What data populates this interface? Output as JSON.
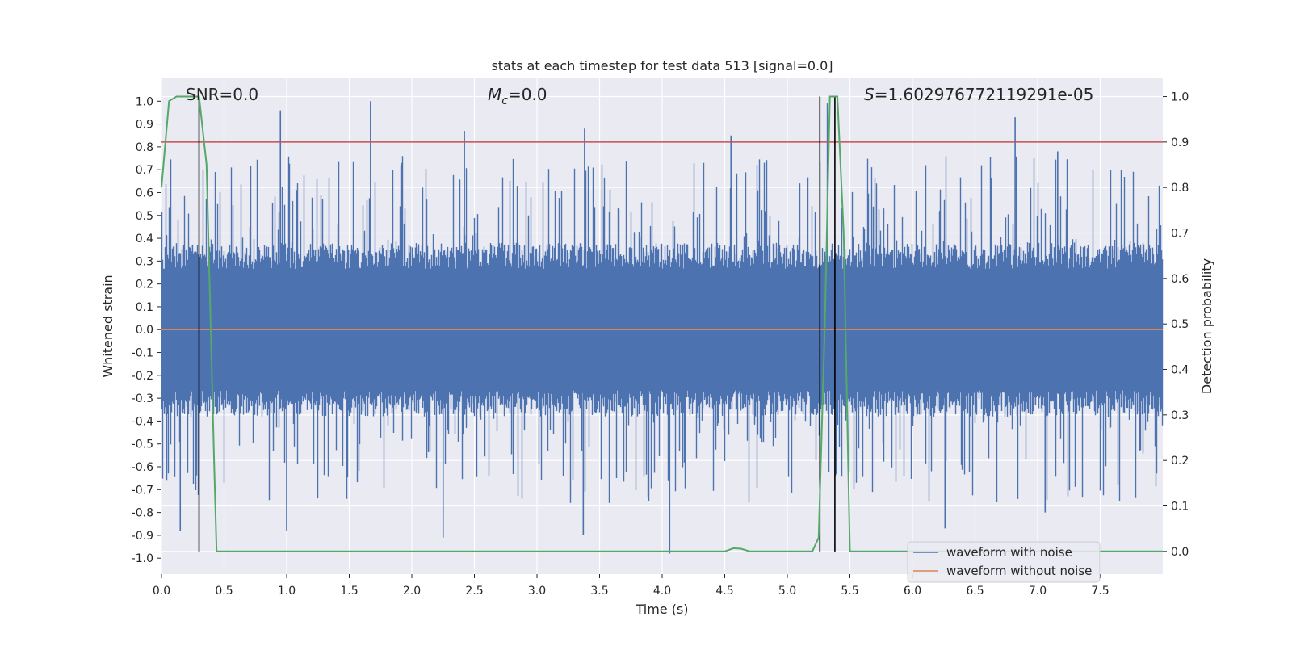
{
  "chart_data": {
    "type": "line",
    "title": "stats at each timestep for test data 513 [signal=0.0]",
    "xlabel": "Time (s)",
    "ylabel_left": "Whitened strain",
    "ylabel_right": "Detection probability",
    "xlim": [
      0.0,
      8.0
    ],
    "ylim_left": [
      -1.07,
      1.1
    ],
    "ylim_right": [
      -0.05,
      1.04
    ],
    "x_ticks": [
      0.0,
      0.5,
      1.0,
      1.5,
      2.0,
      2.5,
      3.0,
      3.5,
      4.0,
      4.5,
      5.0,
      5.5,
      6.0,
      6.5,
      7.0,
      7.5
    ],
    "x_tick_labels": [
      "0.0",
      "0.5",
      "1.0",
      "1.5",
      "2.0",
      "2.5",
      "3.0",
      "3.5",
      "4.0",
      "4.5",
      "5.0",
      "5.5",
      "6.0",
      "6.5",
      "7.0",
      "7.5"
    ],
    "y_left_ticks": [
      1.0,
      0.9,
      0.8,
      0.7,
      0.6,
      0.5,
      0.4,
      0.3,
      0.2,
      0.1,
      0.0,
      -0.1,
      -0.2,
      -0.3,
      -0.4,
      -0.5,
      -0.6,
      -0.7,
      -0.8,
      -0.9,
      -1.0
    ],
    "y_left_tick_labels": [
      "1.0",
      "0.9",
      "0.8",
      "0.7",
      "0.6",
      "0.5",
      "0.4",
      "0.3",
      "0.2",
      "0.1",
      "0.0",
      "-0.1",
      "-0.2",
      "-0.3",
      "-0.4",
      "-0.5",
      "-0.6",
      "-0.7",
      "-0.8",
      "-0.9",
      "-1.0"
    ],
    "y_right_ticks": [
      1.0,
      0.9,
      0.8,
      0.7,
      0.6,
      0.5,
      0.4,
      0.3,
      0.2,
      0.1,
      0.0
    ],
    "y_right_tick_labels": [
      "1.0",
      "0.9",
      "0.8",
      "0.7",
      "0.6",
      "0.5",
      "0.4",
      "0.3",
      "0.2",
      "0.1",
      "0.0"
    ],
    "annotations": {
      "snr": "SNR=0.0",
      "mc_symbol": "M",
      "mc_sub": "c",
      "mc_value": "=0.0",
      "s_symbol": "S",
      "s_value": "=1.602976772119291e-05"
    },
    "series": [
      {
        "name": "waveform with noise",
        "color": "#4c72b0",
        "axis": "left",
        "description": "dense whitened noise, mostly within ±0.4 with spikes",
        "typical_abs": 0.38,
        "max_spikes": [
          {
            "x": 0.95,
            "y": 0.96
          },
          {
            "x": 1.67,
            "y": 1.0
          },
          {
            "x": 2.42,
            "y": 0.87
          },
          {
            "x": 3.38,
            "y": 0.88
          },
          {
            "x": 4.55,
            "y": 0.85
          },
          {
            "x": 5.32,
            "y": 0.99
          },
          {
            "x": 6.82,
            "y": 0.93
          },
          {
            "x": 7.16,
            "y": 0.78
          }
        ],
        "min_spikes": [
          {
            "x": 0.15,
            "y": -0.88
          },
          {
            "x": 1.0,
            "y": -0.88
          },
          {
            "x": 2.25,
            "y": -0.91
          },
          {
            "x": 4.06,
            "y": -0.98
          },
          {
            "x": 3.37,
            "y": -0.9
          },
          {
            "x": 6.26,
            "y": -0.87
          },
          {
            "x": 7.06,
            "y": -0.8
          }
        ]
      },
      {
        "name": "waveform without noise",
        "color": "#dd8452",
        "axis": "left",
        "x": [
          0.0,
          8.0
        ],
        "y": [
          0.0,
          0.0
        ]
      },
      {
        "name": "detection probability",
        "color": "#55a868",
        "axis": "right",
        "x": [
          0.0,
          0.06,
          0.12,
          0.2,
          0.3,
          0.36,
          0.42,
          0.44,
          0.5,
          1.0,
          2.0,
          3.0,
          4.0,
          4.5,
          4.57,
          4.63,
          4.7,
          5.0,
          5.2,
          5.25,
          5.3,
          5.34,
          5.4,
          5.45,
          5.5,
          5.6,
          6.0,
          7.0,
          8.0
        ],
        "y": [
          0.8,
          0.99,
          1.0,
          1.0,
          1.0,
          0.85,
          0.2,
          0.0,
          0.0,
          0.0,
          0.0,
          0.0,
          0.0,
          0.0,
          0.007,
          0.006,
          0.0,
          0.0,
          0.0,
          0.03,
          0.5,
          1.0,
          1.0,
          0.7,
          0.0,
          0.0,
          0.0,
          0.0,
          0.0
        ]
      }
    ],
    "threshold": {
      "axis": "right",
      "value": 0.9,
      "color": "#c44e52"
    },
    "vlines": [
      0.3,
      5.26,
      5.38
    ],
    "legend": {
      "placement": "lower-right",
      "entries": [
        "waveform with noise",
        "waveform without noise"
      ]
    }
  }
}
